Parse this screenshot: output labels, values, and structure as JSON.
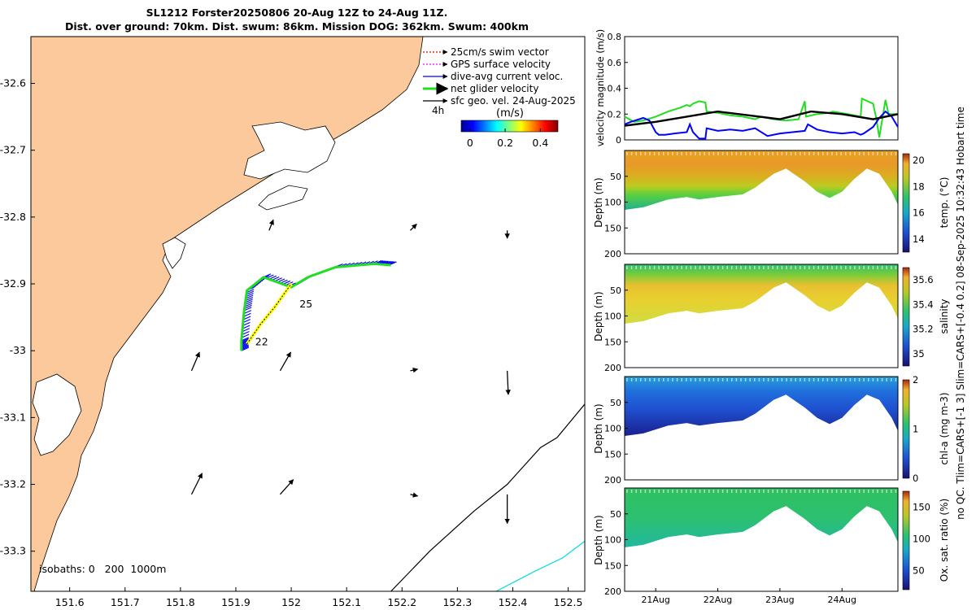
{
  "title": {
    "line1": "SL1212 Forster20250806 20-Aug 12Z to 24-Aug 11Z.",
    "line2": "Dist. over ground: 70km. Dist. swum: 86km. Mission DOG: 362km. Swum: 400km"
  },
  "side_label": {
    "line1": "no QC. Tlim=CARS+[-1 3] Slim=CARS+[-0.4 0.2] 08-Sep-2025 10:32:43 Hobart time"
  },
  "colors": {
    "land": "#fbc99c",
    "swim_vector": "#ff0000",
    "gps_velocity": "#ff00ff",
    "dive_current": "#0000ff",
    "net_velocity": "#22dd22",
    "sfc_vel": "#000000",
    "track_yellow": "#ffff00",
    "isobath_1000": "#00dddd",
    "isobath_200": "#000000"
  },
  "chart_data": [
    {
      "id": "map",
      "type": "map",
      "xlim": [
        151.53,
        152.53
      ],
      "ylim": [
        -33.36,
        -32.53
      ],
      "xticks": [
        "151.6",
        "151.7",
        "151.8",
        "151.9",
        "152",
        "152.1",
        "152.2",
        "152.3",
        "152.4",
        "152.5"
      ],
      "xtick_values": [
        151.6,
        151.7,
        151.8,
        151.9,
        152.0,
        152.1,
        152.2,
        152.3,
        152.4,
        152.5
      ],
      "yticks": [
        "-32.6",
        "-32.7",
        "-32.8",
        "-32.9",
        "-33",
        "-33.1",
        "-33.2",
        "-33.3"
      ],
      "ytick_values": [
        -32.6,
        -32.7,
        -32.8,
        -32.9,
        -33.0,
        -33.1,
        -33.2,
        -33.3
      ],
      "legend": [
        {
          "label": "25cm/s swim vector",
          "color": "#ff0000",
          "style": "dotted"
        },
        {
          "label": "GPS surface velocity",
          "color": "#ff00ff",
          "style": "dotted"
        },
        {
          "label": "dive-avg current veloc.",
          "color": "#0000ff",
          "style": "solid"
        },
        {
          "label": "net glider velocity",
          "color": "#22dd22",
          "style": "thick"
        },
        {
          "label": "sfc geo. vel. 24-Aug-2025",
          "color": "#000000",
          "style": "solid"
        }
      ],
      "legend_note": "4h",
      "colorbar": {
        "label": "(m/s)",
        "ticks": [
          "0",
          "0.2",
          "0.4"
        ],
        "range": [
          -0.05,
          0.5
        ]
      },
      "isobaths_label": "isobaths: 0   200  1000m",
      "track": [
        [
          151.91,
          -33.0
        ],
        [
          151.91,
          -32.985
        ],
        [
          151.915,
          -32.94
        ],
        [
          151.92,
          -32.91
        ],
        [
          151.95,
          -32.89
        ],
        [
          152.0,
          -32.905
        ],
        [
          152.03,
          -32.89
        ],
        [
          152.08,
          -32.875
        ],
        [
          152.15,
          -32.87
        ],
        [
          152.18,
          -32.872
        ]
      ],
      "yellow_track": [
        [
          151.92,
          -32.99
        ],
        [
          151.945,
          -32.96
        ],
        [
          151.97,
          -32.935
        ],
        [
          152.0,
          -32.9
        ]
      ],
      "track_labels": [
        {
          "text": "22",
          "lon": 151.935,
          "lat": -32.992
        },
        {
          "text": "25",
          "lon": 152.015,
          "lat": -32.935
        }
      ],
      "arrows": [
        {
          "lon": 151.96,
          "lat": -32.82,
          "u": 0.08,
          "v": 0.2
        },
        {
          "lon": 152.215,
          "lat": -32.82,
          "u": 0.12,
          "v": 0.12
        },
        {
          "lon": 152.39,
          "lat": -32.82,
          "u": 0.0,
          "v": -0.15
        },
        {
          "lon": 151.82,
          "lat": -33.03,
          "u": 0.15,
          "v": 0.35
        },
        {
          "lon": 151.98,
          "lat": -33.03,
          "u": 0.2,
          "v": 0.35
        },
        {
          "lon": 152.215,
          "lat": -33.03,
          "u": 0.14,
          "v": 0.03
        },
        {
          "lon": 152.39,
          "lat": -33.03,
          "u": 0.02,
          "v": -0.45
        },
        {
          "lon": 151.82,
          "lat": -33.215,
          "u": 0.2,
          "v": 0.4
        },
        {
          "lon": 151.98,
          "lat": -33.215,
          "u": 0.25,
          "v": 0.28
        },
        {
          "lon": 152.215,
          "lat": -33.215,
          "u": 0.14,
          "v": -0.03
        },
        {
          "lon": 152.39,
          "lat": -33.215,
          "u": 0.0,
          "v": -0.55
        }
      ],
      "isobath_200": [
        [
          152.18,
          -33.36
        ],
        [
          152.25,
          -33.3
        ],
        [
          152.33,
          -33.24
        ],
        [
          152.39,
          -33.2
        ],
        [
          152.45,
          -33.145
        ],
        [
          152.48,
          -33.13
        ],
        [
          152.53,
          -33.08
        ]
      ],
      "isobath_1000": [
        [
          152.37,
          -33.36
        ],
        [
          152.44,
          -33.33
        ],
        [
          152.49,
          -33.31
        ],
        [
          152.53,
          -33.285
        ]
      ]
    },
    {
      "id": "velocity",
      "type": "line",
      "ylabel": "velocity magnitude (m/s)",
      "ylim": [
        0,
        0.8
      ],
      "yticks": [
        "0",
        "0.2",
        "0.4",
        "0.6",
        "0.8"
      ],
      "xlim": [
        0,
        4.4
      ],
      "series": [
        {
          "name": "net glider velocity",
          "color": "#22dd22",
          "x": [
            0,
            0.15,
            0.3,
            0.5,
            0.7,
            0.9,
            1.0,
            1.05,
            1.1,
            1.2,
            1.3,
            1.32,
            1.5,
            1.7,
            1.9,
            2.0,
            2.1,
            2.2,
            2.4,
            2.6,
            2.8,
            2.9,
            2.92,
            3.1,
            3.3,
            3.35,
            3.6,
            3.8,
            3.82,
            4.0,
            4.05,
            4.1,
            4.2,
            4.25,
            4.4
          ],
          "y": [
            0.18,
            0.14,
            0.15,
            0.18,
            0.22,
            0.25,
            0.27,
            0.26,
            0.28,
            0.3,
            0.29,
            0.22,
            0.21,
            0.19,
            0.18,
            0.17,
            0.16,
            0.18,
            0.16,
            0.15,
            0.16,
            0.3,
            0.18,
            0.2,
            0.21,
            0.22,
            0.2,
            0.18,
            0.32,
            0.28,
            0.17,
            0.02,
            0.31,
            0.2,
            0.2
          ]
        },
        {
          "name": "dive-avg current veloc.",
          "color": "#0000ff",
          "x": [
            0,
            0.1,
            0.3,
            0.4,
            0.5,
            0.55,
            0.65,
            0.8,
            1.0,
            1.05,
            1.1,
            1.2,
            1.3,
            1.32,
            1.5,
            1.7,
            1.9,
            2.1,
            2.3,
            2.5,
            2.7,
            2.9,
            2.95,
            3.1,
            3.3,
            3.5,
            3.7,
            3.8,
            3.85,
            4.0,
            4.1,
            4.2,
            4.3,
            4.4
          ],
          "y": [
            0.12,
            0.14,
            0.17,
            0.15,
            0.06,
            0.04,
            0.04,
            0.05,
            0.06,
            0.12,
            0.06,
            0.01,
            0.01,
            0.09,
            0.07,
            0.08,
            0.07,
            0.09,
            0.03,
            0.05,
            0.06,
            0.07,
            0.12,
            0.08,
            0.06,
            0.05,
            0.06,
            0.04,
            0.05,
            0.1,
            0.17,
            0.22,
            0.18,
            0.1
          ]
        },
        {
          "name": "sfc velocity",
          "color": "#000000",
          "x": [
            0,
            0.5,
            1.0,
            1.5,
            2.0,
            2.5,
            3.0,
            3.5,
            4.0,
            4.4
          ],
          "y": [
            0.11,
            0.14,
            0.18,
            0.22,
            0.19,
            0.16,
            0.22,
            0.2,
            0.16,
            0.2
          ]
        }
      ]
    },
    {
      "id": "temperature",
      "type": "heatmap",
      "ylabel": "Depth (m)",
      "ylim": [
        200,
        0
      ],
      "yticks": [
        "50",
        "100",
        "150",
        "200"
      ],
      "colorbar": {
        "label": "temp. (°C)",
        "ticks": [
          "14",
          "16",
          "18",
          "20"
        ],
        "range": [
          13,
          20.5
        ]
      },
      "bottom_x": [
        0,
        0.3,
        0.7,
        1.0,
        1.2,
        1.5,
        1.9,
        2.1,
        2.4,
        2.6,
        2.9,
        3.1,
        3.3,
        3.5,
        3.7,
        3.9,
        4.1,
        4.3,
        4.4
      ],
      "bottom_depth": [
        115,
        110,
        95,
        90,
        95,
        90,
        85,
        72,
        45,
        35,
        60,
        80,
        92,
        80,
        55,
        35,
        45,
        80,
        105
      ]
    },
    {
      "id": "salinity",
      "type": "heatmap",
      "ylabel": "Depth (m)",
      "ylim": [
        200,
        0
      ],
      "yticks": [
        "50",
        "100",
        "150",
        "200"
      ],
      "colorbar": {
        "label": "salinity",
        "ticks": [
          "35",
          "35.2",
          "35.4",
          "35.6"
        ],
        "range": [
          34.9,
          35.7
        ]
      },
      "bottom_x": [
        0,
        0.3,
        0.7,
        1.0,
        1.2,
        1.5,
        1.9,
        2.1,
        2.4,
        2.6,
        2.9,
        3.1,
        3.3,
        3.5,
        3.7,
        3.9,
        4.1,
        4.3,
        4.4
      ],
      "bottom_depth": [
        115,
        110,
        95,
        90,
        95,
        90,
        85,
        72,
        45,
        35,
        60,
        80,
        92,
        80,
        55,
        35,
        45,
        80,
        105
      ]
    },
    {
      "id": "chla",
      "type": "heatmap",
      "ylabel": "Depth (m)",
      "ylim": [
        200,
        0
      ],
      "yticks": [
        "50",
        "100",
        "150",
        "200"
      ],
      "colorbar": {
        "label": "chl-a (mg m-3)",
        "ticks": [
          "0",
          "1",
          "2"
        ],
        "range": [
          0,
          2
        ]
      },
      "bottom_x": [
        0,
        0.3,
        0.7,
        1.0,
        1.2,
        1.5,
        1.9,
        2.1,
        2.4,
        2.6,
        2.9,
        3.1,
        3.3,
        3.5,
        3.7,
        3.9,
        4.1,
        4.3,
        4.4
      ],
      "bottom_depth": [
        115,
        110,
        95,
        90,
        95,
        90,
        85,
        72,
        45,
        35,
        60,
        80,
        92,
        80,
        55,
        35,
        45,
        80,
        105
      ]
    },
    {
      "id": "oxygen",
      "type": "heatmap",
      "ylabel": "Depth (m)",
      "ylim": [
        200,
        0
      ],
      "yticks": [
        "50",
        "100",
        "150",
        "200"
      ],
      "xticks": [
        "21Aug",
        "22Aug",
        "23Aug",
        "24Aug"
      ],
      "xtick_values": [
        0.5,
        1.5,
        2.5,
        3.5
      ],
      "colorbar": {
        "label": "Ox. sat. ratio (%)",
        "ticks": [
          "50",
          "100",
          "150"
        ],
        "range": [
          20,
          175
        ]
      },
      "bottom_x": [
        0,
        0.3,
        0.7,
        1.0,
        1.2,
        1.5,
        1.9,
        2.1,
        2.4,
        2.6,
        2.9,
        3.1,
        3.3,
        3.5,
        3.7,
        3.9,
        4.1,
        4.3,
        4.4
      ],
      "bottom_depth": [
        115,
        110,
        95,
        90,
        95,
        90,
        85,
        72,
        45,
        35,
        60,
        80,
        92,
        80,
        55,
        35,
        45,
        80,
        105
      ]
    }
  ]
}
